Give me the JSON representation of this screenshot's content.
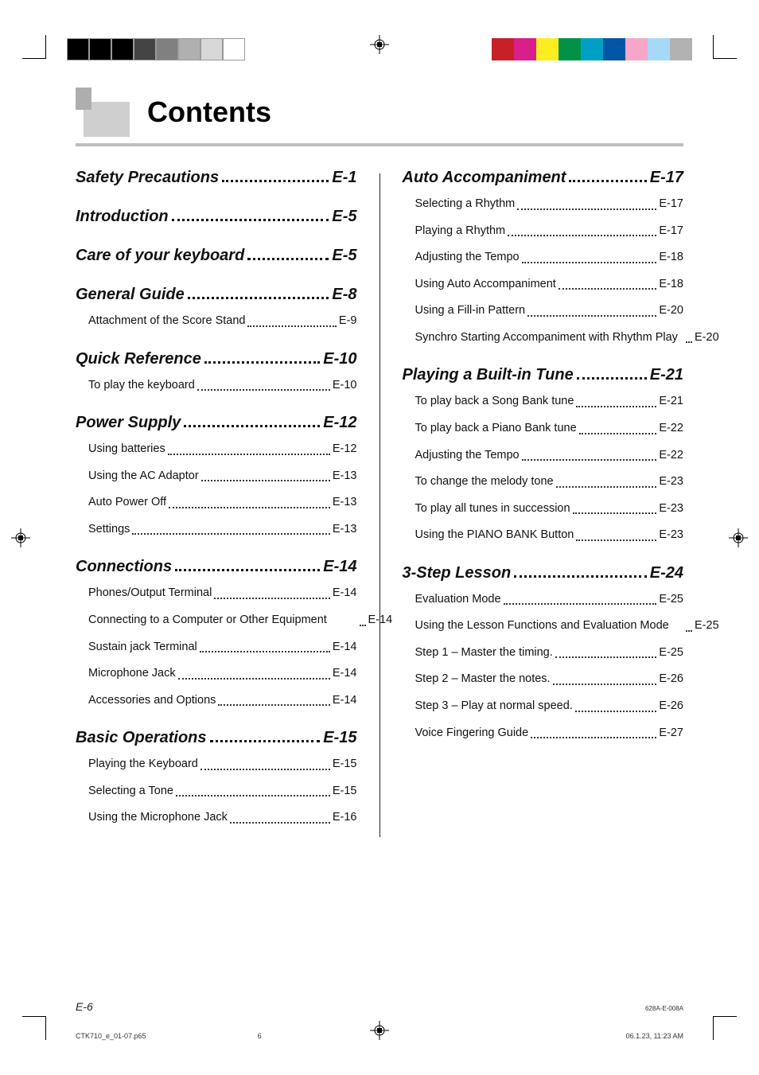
{
  "colors": {
    "gray_light": "#cfcfcf",
    "gray_med": "#aeaeae",
    "rule": "#bfbfbf",
    "text": "#111111",
    "bar_left": [
      "#000000",
      "#000000",
      "#000000",
      "#444444",
      "#808080",
      "#b0b0b0",
      "#d8d8d8",
      "#ffffff"
    ],
    "bar_right": [
      "#c52127",
      "#d91f8c",
      "#fced23",
      "#009247",
      "#00a0c6",
      "#0055a5",
      "#f6a6c9",
      "#a6d9f7",
      "#b2b2b2"
    ],
    "bar_border": "#9a9a9a"
  },
  "title": "Contents",
  "footer": {
    "page": "E-6",
    "doc_code": "628A-E-008A"
  },
  "printline": {
    "file": "CTK710_e_01-07.p65",
    "sheet": "6",
    "timestamp": "06.1.23, 11:23 AM"
  },
  "left": [
    {
      "title": "Safety Precautions",
      "page": "E-1",
      "items": []
    },
    {
      "title": "Introduction",
      "page": "E-5",
      "items": []
    },
    {
      "title": "Care of your keyboard",
      "page": "E-5",
      "items": []
    },
    {
      "title": "General Guide",
      "page": "E-8",
      "items": [
        {
          "label": "Attachment of the Score Stand",
          "page": "E-9"
        }
      ]
    },
    {
      "title": "Quick Reference",
      "page": "E-10",
      "items": [
        {
          "label": "To play the keyboard",
          "page": "E-10"
        }
      ]
    },
    {
      "title": "Power Supply",
      "page": "E-12",
      "items": [
        {
          "label": "Using batteries",
          "page": "E-12"
        },
        {
          "label": "Using the AC Adaptor",
          "page": "E-13"
        },
        {
          "label": "Auto Power Off",
          "page": "E-13"
        },
        {
          "label": "Settings",
          "page": "E-13"
        }
      ]
    },
    {
      "title": "Connections",
      "page": "E-14",
      "items": [
        {
          "label": "Phones/Output Terminal",
          "page": "E-14"
        },
        {
          "label": "Connecting to a Computer or Other Equipment",
          "page": "E-14"
        },
        {
          "label": "Sustain jack Terminal",
          "page": "E-14"
        },
        {
          "label": "Microphone Jack",
          "page": "E-14"
        },
        {
          "label": "Accessories and Options",
          "page": "E-14"
        }
      ]
    },
    {
      "title": "Basic Operations",
      "page": "E-15",
      "items": [
        {
          "label": "Playing the Keyboard",
          "page": "E-15"
        },
        {
          "label": "Selecting a Tone",
          "page": "E-15"
        },
        {
          "label": "Using the Microphone Jack",
          "page": "E-16"
        }
      ]
    }
  ],
  "right": [
    {
      "title": "Auto Accompaniment",
      "page": "E-17",
      "items": [
        {
          "label": "Selecting a Rhythm",
          "page": "E-17"
        },
        {
          "label": "Playing a Rhythm",
          "page": "E-17"
        },
        {
          "label": "Adjusting the Tempo",
          "page": "E-18"
        },
        {
          "label": "Using Auto Accompaniment",
          "page": "E-18"
        },
        {
          "label": "Using a Fill-in Pattern",
          "page": "E-20"
        },
        {
          "label": "Synchro Starting Accompaniment with Rhythm Play",
          "page": "E-20"
        }
      ]
    },
    {
      "title": "Playing a Built-in Tune",
      "page": "E-21",
      "items": [
        {
          "label": "To play back a Song Bank tune",
          "page": "E-21"
        },
        {
          "label": "To play back a Piano Bank tune",
          "page": "E-22"
        },
        {
          "label": "Adjusting the Tempo",
          "page": "E-22"
        },
        {
          "label": "To change the melody tone",
          "page": "E-23"
        },
        {
          "label": "To play all tunes in succession",
          "page": "E-23"
        },
        {
          "label": "Using the PIANO BANK Button",
          "page": "E-23"
        }
      ]
    },
    {
      "title": "3-Step Lesson",
      "page": "E-24",
      "items": [
        {
          "label": "Evaluation Mode",
          "page": "E-25"
        },
        {
          "label": "Using the Lesson Functions and Evaluation Mode",
          "page": "E-25"
        },
        {
          "label": "Step 1 – Master the timing.",
          "page": "E-25"
        },
        {
          "label": "Step 2 – Master the notes.",
          "page": "E-26"
        },
        {
          "label": "Step 3 – Play at normal speed.",
          "page": "E-26"
        },
        {
          "label": "Voice Fingering Guide",
          "page": "E-27"
        }
      ]
    }
  ]
}
